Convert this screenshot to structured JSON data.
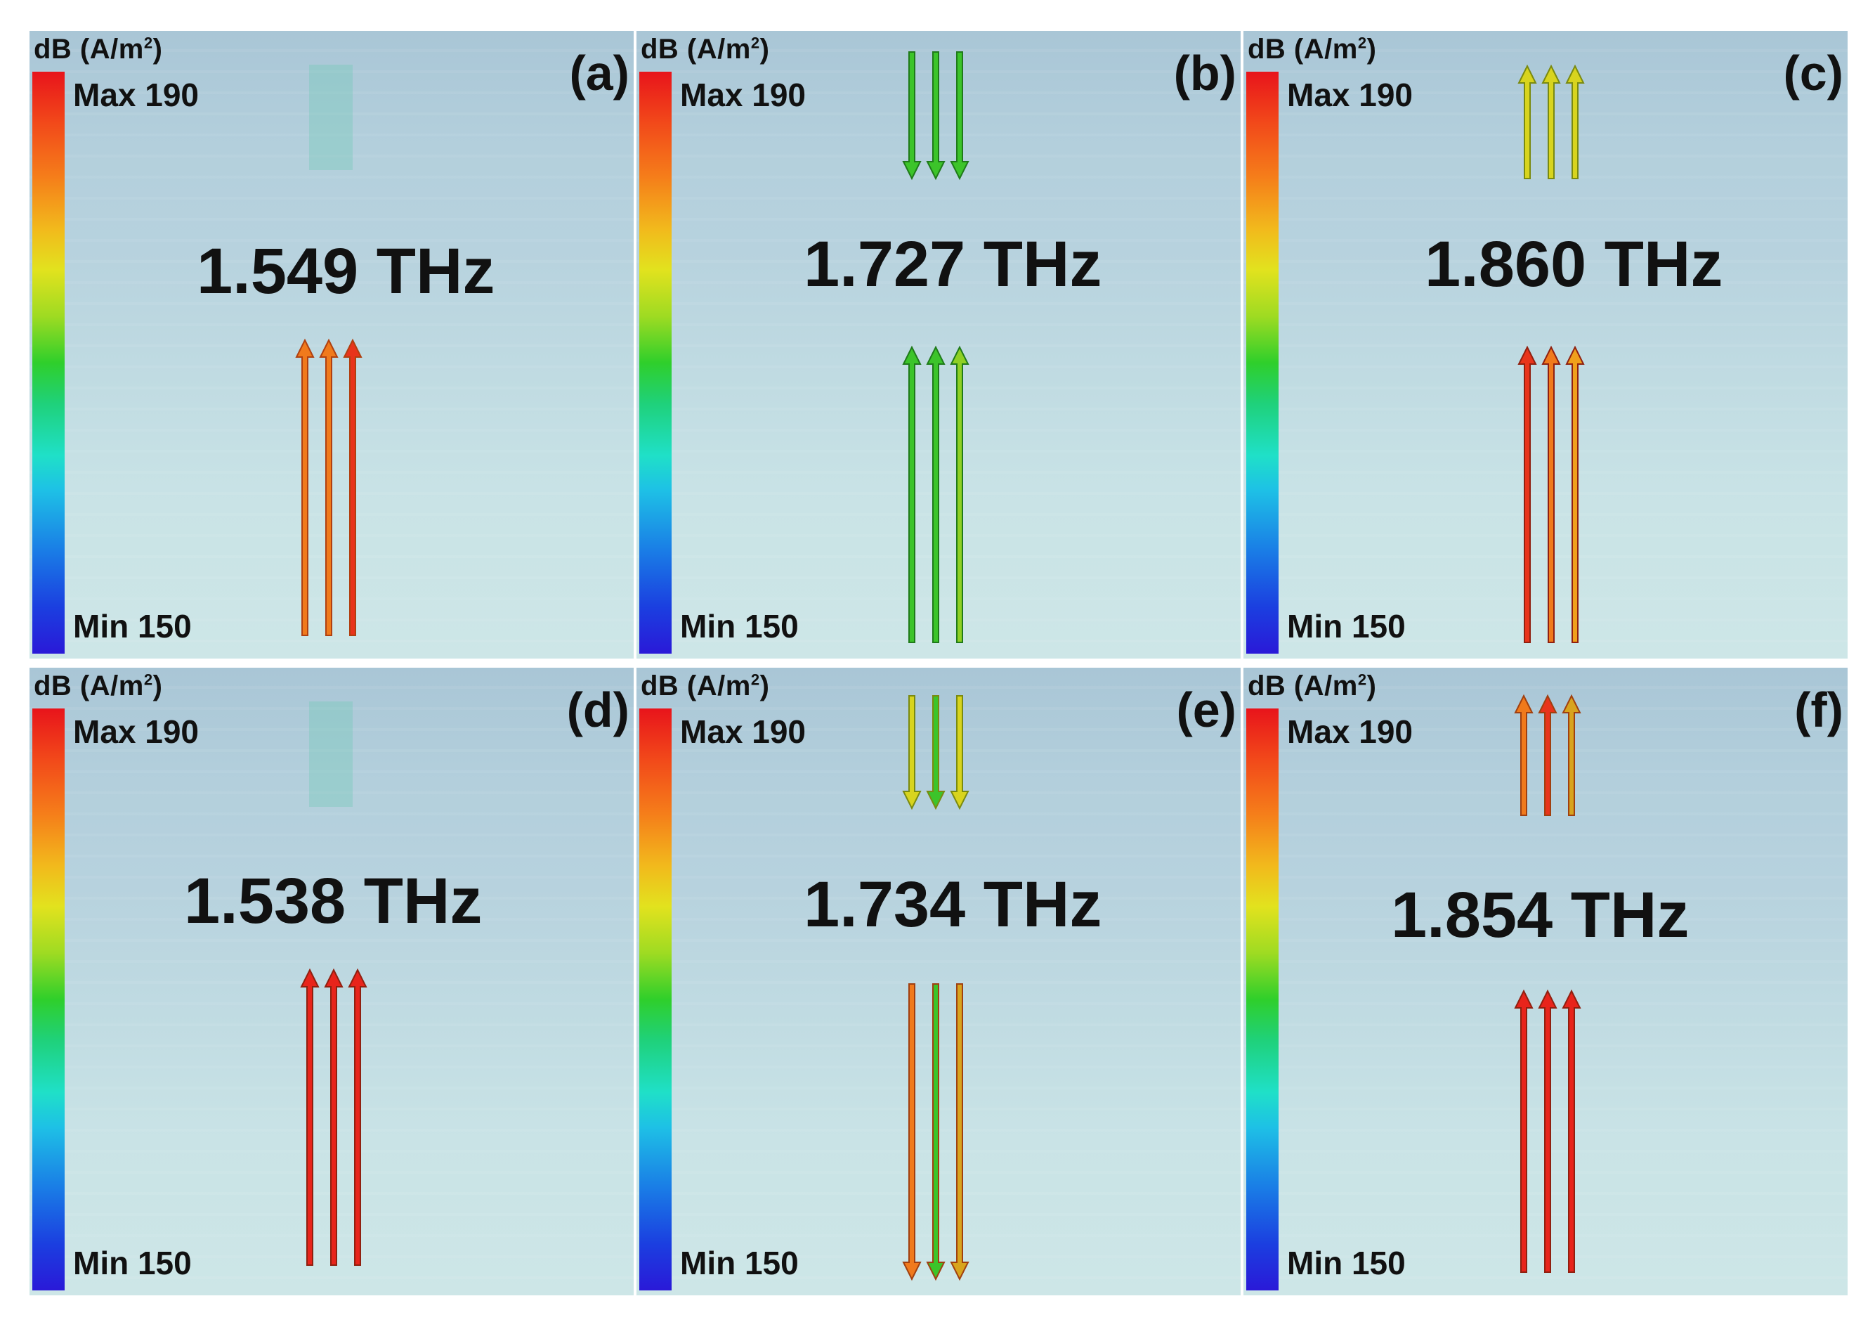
{
  "panels": [
    {
      "label": "(a)",
      "frequency": "1.549 THz",
      "unit": "dB (A/m",
      "unit_sup": "2",
      "unit_close": ")",
      "max": "Max 190",
      "min": "Min 150"
    },
    {
      "label": "(b)",
      "frequency": "1.727 THz",
      "unit": "dB (A/m",
      "unit_sup": "2",
      "unit_close": ")",
      "max": "Max 190",
      "min": "Min 150"
    },
    {
      "label": "(c)",
      "frequency": "1.860 THz",
      "unit": "dB (A/m",
      "unit_sup": "2",
      "unit_close": ")",
      "max": "Max 190",
      "min": "Min 150"
    },
    {
      "label": "(d)",
      "frequency": "1.538 THz",
      "unit": "dB (A/m",
      "unit_sup": "2",
      "unit_close": ")",
      "max": "Max 190",
      "min": "Min 150"
    },
    {
      "label": "(e)",
      "frequency": "1.734 THz",
      "unit": "dB (A/m",
      "unit_sup": "2",
      "unit_close": ")",
      "max": "Max 190",
      "min": "Min 150"
    },
    {
      "label": "(f)",
      "frequency": "1.854 THz",
      "unit": "dB (A/m",
      "unit_sup": "2",
      "unit_close": ")",
      "max": "Max 190",
      "min": "Min 150"
    }
  ],
  "colors": {
    "red": "#e8241b",
    "orange": "#f07a1c",
    "yellow": "#d8d41e",
    "green": "#3cc42a",
    "cyan": "#28c8c0",
    "blue": "#2a7ce0"
  }
}
